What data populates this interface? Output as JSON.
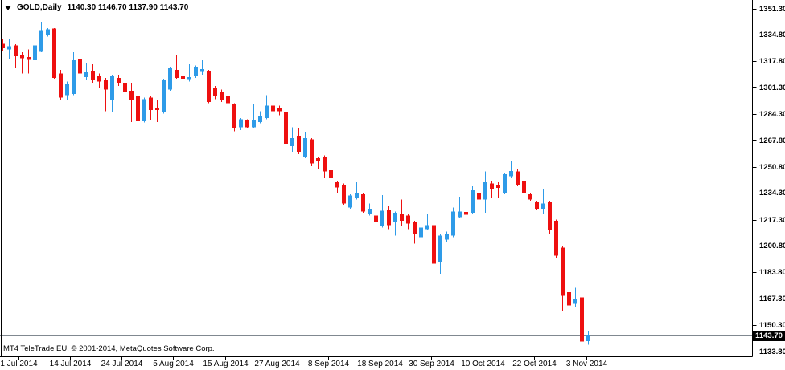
{
  "title": {
    "symbol_period": "GOLD,Daily",
    "ohlc": "1140.30 1146.70 1137.90 1143.70"
  },
  "watermark": "MT4 TeleTrade EU, © 2001-2014, MetaQuotes Software Corp.",
  "chart_data": {
    "type": "candlestick",
    "symbol": "GOLD",
    "timeframe": "Daily",
    "title": "GOLD,Daily 1140.30 1146.70 1137.90 1143.70",
    "current_bar": {
      "open": 1140.3,
      "high": 1146.7,
      "low": 1137.9,
      "close": 1143.7
    },
    "current_price": 1143.7,
    "current_price_label": "1143.70",
    "grid": "off",
    "y_axis": {
      "side": "right",
      "min": 1133.8,
      "max": 1351.3,
      "ticks": [
        "1351.30",
        "1334.80",
        "1317.80",
        "1301.30",
        "1284.30",
        "1267.80",
        "1250.80",
        "1234.30",
        "1217.30",
        "1200.80",
        "1183.80",
        "1167.30",
        "1150.30",
        "1133.80"
      ]
    },
    "x_axis": {
      "side": "bottom",
      "ticks": [
        "1 Jul 2014",
        "14 Jul 2014",
        "24 Jul 2014",
        "5 Aug 2014",
        "15 Aug 2014",
        "27 Aug 2014",
        "8 Sep 2014",
        "18 Sep 2014",
        "30 Sep 2014",
        "10 Oct 2014",
        "22 Oct 2014",
        "3 Nov 2014"
      ]
    },
    "colors": {
      "background": "#FFFFFF",
      "bull": "#2E9BE8",
      "bear": "#EE1010",
      "price_line": "#808890",
      "axis": "#000000",
      "badge_bg": "#000000",
      "badge_text": "#FFFFFF",
      "text": "#000000"
    },
    "candles_format": [
      "open",
      "high",
      "low",
      "close"
    ],
    "candles": [
      [
        1329.0,
        1332.0,
        1324.4,
        1326.1
      ],
      [
        1325.3,
        1331.7,
        1319.3,
        1327.5
      ],
      [
        1327.8,
        1328.7,
        1313.4,
        1321.0
      ],
      [
        1321.9,
        1323.6,
        1310.0,
        1319.8
      ],
      [
        1320.5,
        1325.3,
        1310.0,
        1318.8
      ],
      [
        1318.5,
        1332.1,
        1316.8,
        1327.8
      ],
      [
        1323.9,
        1342.6,
        1323.6,
        1337.2
      ],
      [
        1334.6,
        1338.9,
        1333.4,
        1338.0
      ],
      [
        1338.5,
        1338.9,
        1306.2,
        1307.4
      ],
      [
        1310.0,
        1312.5,
        1293.0,
        1294.7
      ],
      [
        1296.4,
        1304.9,
        1293.0,
        1303.2
      ],
      [
        1297.2,
        1323.6,
        1296.4,
        1318.5
      ],
      [
        1319.3,
        1324.4,
        1304.9,
        1310.0
      ],
      [
        1307.9,
        1316.8,
        1305.7,
        1310.8
      ],
      [
        1311.7,
        1315.9,
        1304.0,
        1305.7
      ],
      [
        1308.3,
        1310.0,
        1300.6,
        1304.9
      ],
      [
        1305.7,
        1307.4,
        1286.2,
        1299.8
      ],
      [
        1293.0,
        1309.1,
        1285.3,
        1308.3
      ],
      [
        1307.4,
        1309.1,
        1302.3,
        1304.0
      ],
      [
        1304.0,
        1312.5,
        1294.7,
        1298.1
      ],
      [
        1298.9,
        1304.0,
        1279.4,
        1293.0
      ],
      [
        1295.8,
        1296.9,
        1278.2,
        1279.9
      ],
      [
        1279.9,
        1294.7,
        1278.9,
        1293.8
      ],
      [
        1294.7,
        1295.5,
        1280.2,
        1287.0
      ],
      [
        1288.0,
        1293.0,
        1279.4,
        1287.0
      ],
      [
        1285.3,
        1306.6,
        1284.5,
        1305.7
      ],
      [
        1299.8,
        1314.2,
        1299.0,
        1313.4
      ],
      [
        1312.5,
        1321.9,
        1306.6,
        1307.4
      ],
      [
        1308.3,
        1310.0,
        1304.0,
        1306.6
      ],
      [
        1306.0,
        1315.9,
        1304.9,
        1307.7
      ],
      [
        1308.3,
        1315.1,
        1307.4,
        1314.2
      ],
      [
        1311.1,
        1318.5,
        1309.1,
        1312.8
      ],
      [
        1311.7,
        1312.5,
        1291.3,
        1292.1
      ],
      [
        1300.6,
        1302.3,
        1293.8,
        1295.5
      ],
      [
        1298.1,
        1299.8,
        1292.1,
        1293.0
      ],
      [
        1295.5,
        1296.4,
        1289.6,
        1291.3
      ],
      [
        1290.4,
        1291.3,
        1273.4,
        1275.1
      ],
      [
        1276.0,
        1281.9,
        1274.3,
        1281.1
      ],
      [
        1280.5,
        1281.1,
        1275.1,
        1276.0
      ],
      [
        1276.0,
        1290.4,
        1275.1,
        1280.2
      ],
      [
        1279.4,
        1286.2,
        1278.5,
        1282.8
      ],
      [
        1281.9,
        1296.4,
        1281.1,
        1289.6
      ],
      [
        1289.6,
        1290.4,
        1282.8,
        1286.2
      ],
      [
        1287.9,
        1289.6,
        1283.6,
        1286.2
      ],
      [
        1285.3,
        1286.2,
        1260.7,
        1264.9
      ],
      [
        1264.1,
        1276.0,
        1259.8,
        1269.2
      ],
      [
        1270.0,
        1275.1,
        1259.0,
        1259.8
      ],
      [
        1257.3,
        1272.6,
        1256.4,
        1269.2
      ],
      [
        1268.3,
        1269.2,
        1251.3,
        1253.0
      ],
      [
        1256.4,
        1257.3,
        1249.6,
        1254.7
      ],
      [
        1257.3,
        1258.1,
        1243.7,
        1247.9
      ],
      [
        1248.8,
        1249.6,
        1235.2,
        1243.7
      ],
      [
        1241.1,
        1242.0,
        1234.3,
        1237.7
      ],
      [
        1239.4,
        1240.3,
        1226.7,
        1227.5
      ],
      [
        1225.0,
        1233.5,
        1224.1,
        1232.6
      ],
      [
        1230.9,
        1241.1,
        1230.1,
        1234.3
      ],
      [
        1233.5,
        1234.3,
        1221.6,
        1222.4
      ],
      [
        1220.7,
        1227.5,
        1219.9,
        1224.1
      ],
      [
        1219.9,
        1220.7,
        1213.1,
        1215.6
      ],
      [
        1213.1,
        1232.9,
        1212.2,
        1222.9
      ],
      [
        1223.3,
        1225.8,
        1211.4,
        1213.9
      ],
      [
        1215.6,
        1222.4,
        1207.1,
        1221.6
      ],
      [
        1220.7,
        1230.1,
        1213.1,
        1216.5
      ],
      [
        1219.9,
        1220.7,
        1211.4,
        1214.8
      ],
      [
        1215.6,
        1216.5,
        1202.0,
        1208.0
      ],
      [
        1206.3,
        1213.1,
        1202.9,
        1212.2
      ],
      [
        1211.4,
        1220.7,
        1210.5,
        1213.9
      ],
      [
        1213.9,
        1214.8,
        1188.4,
        1189.3
      ],
      [
        1190.1,
        1208.0,
        1182.5,
        1207.1
      ],
      [
        1204.6,
        1209.7,
        1202.9,
        1208.0
      ],
      [
        1207.1,
        1225.0,
        1206.3,
        1222.4
      ],
      [
        1219.0,
        1231.8,
        1218.2,
        1222.4
      ],
      [
        1222.1,
        1226.7,
        1216.5,
        1220.4
      ],
      [
        1221.6,
        1238.6,
        1220.7,
        1236.0
      ],
      [
        1234.3,
        1235.2,
        1229.2,
        1230.1
      ],
      [
        1230.1,
        1247.9,
        1221.6,
        1241.1
      ],
      [
        1240.3,
        1242.0,
        1230.9,
        1236.9
      ],
      [
        1239.2,
        1241.1,
        1230.9,
        1237.5
      ],
      [
        1234.3,
        1247.1,
        1233.5,
        1246.2
      ],
      [
        1244.8,
        1254.7,
        1243.7,
        1248.2
      ],
      [
        1247.9,
        1249.3,
        1238.6,
        1239.4
      ],
      [
        1242.0,
        1242.8,
        1225.8,
        1234.3
      ],
      [
        1233.5,
        1234.3,
        1229.2,
        1230.1
      ],
      [
        1228.4,
        1229.2,
        1223.3,
        1224.1
      ],
      [
        1224.1,
        1236.9,
        1220.7,
        1227.5
      ],
      [
        1228.4,
        1229.2,
        1208.0,
        1210.5
      ],
      [
        1216.5,
        1217.3,
        1192.7,
        1194.4
      ],
      [
        1199.5,
        1200.3,
        1159.5,
        1168.9
      ],
      [
        1171.4,
        1173.1,
        1162.1,
        1162.9
      ],
      [
        1163.8,
        1174.0,
        1162.1,
        1167.2
      ],
      [
        1168.0,
        1168.9,
        1137.4,
        1140.0
      ],
      [
        1140.3,
        1146.7,
        1137.9,
        1143.7
      ]
    ]
  }
}
